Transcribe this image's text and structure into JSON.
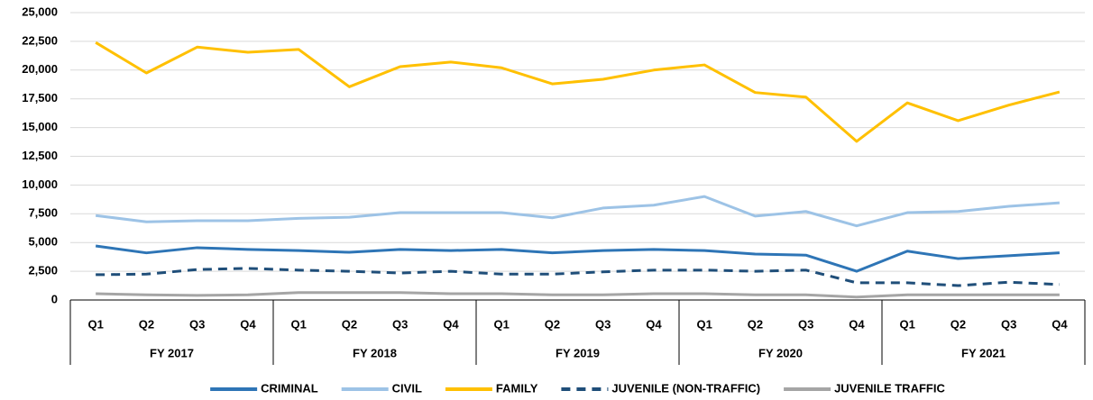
{
  "chart_data": {
    "type": "line",
    "categories": [
      "Q1",
      "Q2",
      "Q3",
      "Q4",
      "Q1",
      "Q2",
      "Q3",
      "Q4",
      "Q1",
      "Q2",
      "Q3",
      "Q4",
      "Q1",
      "Q2",
      "Q3",
      "Q4",
      "Q1",
      "Q2",
      "Q3",
      "Q4"
    ],
    "groups": [
      "FY 2017",
      "FY 2018",
      "FY 2019",
      "FY 2020",
      "FY 2021"
    ],
    "series": [
      {
        "name": "CRIMINAL",
        "color": "#2e75b6",
        "values": [
          4700,
          4100,
          4550,
          4400,
          4300,
          4150,
          4400,
          4300,
          4400,
          4100,
          4300,
          4400,
          4300,
          4000,
          3900,
          2500,
          4250,
          3600,
          3850,
          4100
        ]
      },
      {
        "name": "CIVIL",
        "color": "#9dc3e6",
        "values": [
          7350,
          6800,
          6900,
          6900,
          7100,
          7200,
          7600,
          7600,
          7600,
          7150,
          8000,
          8250,
          9000,
          7300,
          7700,
          6450,
          7600,
          7700,
          8150,
          8450
        ]
      },
      {
        "name": "FAMILY",
        "color": "#ffc000",
        "values": [
          22400,
          19750,
          22000,
          21550,
          21800,
          18550,
          20300,
          20700,
          20200,
          18800,
          19200,
          20000,
          20450,
          18050,
          17650,
          13800,
          17150,
          15600,
          16950,
          18100
        ]
      },
      {
        "name": "JUVENILE (NON-TRAFFIC)",
        "color": "#1f4e79",
        "dashed": true,
        "values": [
          2200,
          2250,
          2650,
          2750,
          2600,
          2500,
          2350,
          2500,
          2250,
          2250,
          2450,
          2600,
          2600,
          2500,
          2600,
          1500,
          1500,
          1250,
          1550,
          1350
        ]
      },
      {
        "name": "JUVENILE TRAFFIC",
        "color": "#a5a5a5",
        "values": [
          550,
          450,
          400,
          450,
          650,
          650,
          650,
          550,
          550,
          450,
          450,
          550,
          550,
          450,
          450,
          250,
          450,
          450,
          450,
          450
        ]
      }
    ],
    "ylim": [
      0,
      25000
    ],
    "yticks": [
      0,
      {
        "value": 2500,
        "label": "2,500"
      },
      {
        "value": 5000,
        "label": "5,000"
      },
      {
        "value": 7500,
        "label": "7,500"
      },
      {
        "value": 10000,
        "label": "10,000"
      },
      {
        "value": 12500,
        "label": "12,500"
      },
      {
        "value": 15000,
        "label": "15,000"
      },
      {
        "value": 17500,
        "label": "17,500"
      },
      {
        "value": 20000,
        "label": "20,000"
      },
      {
        "value": 22500,
        "label": "22,500"
      },
      {
        "value": 25000,
        "label": "25,000"
      }
    ],
    "grid": true,
    "legend": "bottom"
  }
}
